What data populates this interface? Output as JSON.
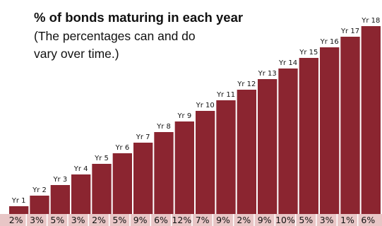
{
  "title": "% of bonds maturing in each year",
  "subtitle": "(The percentages can and do vary over time.)",
  "colors": {
    "bar": "#8b2530",
    "strip": "#e8c6c6",
    "divider": "#ffffff",
    "text": "#111111"
  },
  "chart_data": {
    "type": "bar",
    "categories": [
      "Yr 1",
      "Yr 2",
      "Yr 3",
      "Yr 4",
      "Yr 5",
      "Yr 6",
      "Yr 7",
      "Yr 8",
      "Yr 9",
      "Yr 10",
      "Yr 11",
      "Yr 12",
      "Yr 13",
      "Yr 14",
      "Yr 15",
      "Yr 16",
      "Yr 17",
      "Yr 18"
    ],
    "values": [
      2,
      3,
      5,
      3,
      2,
      5,
      9,
      6,
      12,
      7,
      9,
      2,
      9,
      10,
      5,
      3,
      1,
      6
    ],
    "value_labels": [
      "2%",
      "3%",
      "5%",
      "3%",
      "2%",
      "5%",
      "9%",
      "6%",
      "12%",
      "7%",
      "9%",
      "2%",
      "9%",
      "10%",
      "5%",
      "3%",
      "1%",
      "6%"
    ],
    "title": "% of bonds maturing in each year",
    "subtitle": "(The percentages can and do vary over time.)",
    "xlabel": "",
    "ylabel": "",
    "grid": false,
    "legend": "none"
  }
}
